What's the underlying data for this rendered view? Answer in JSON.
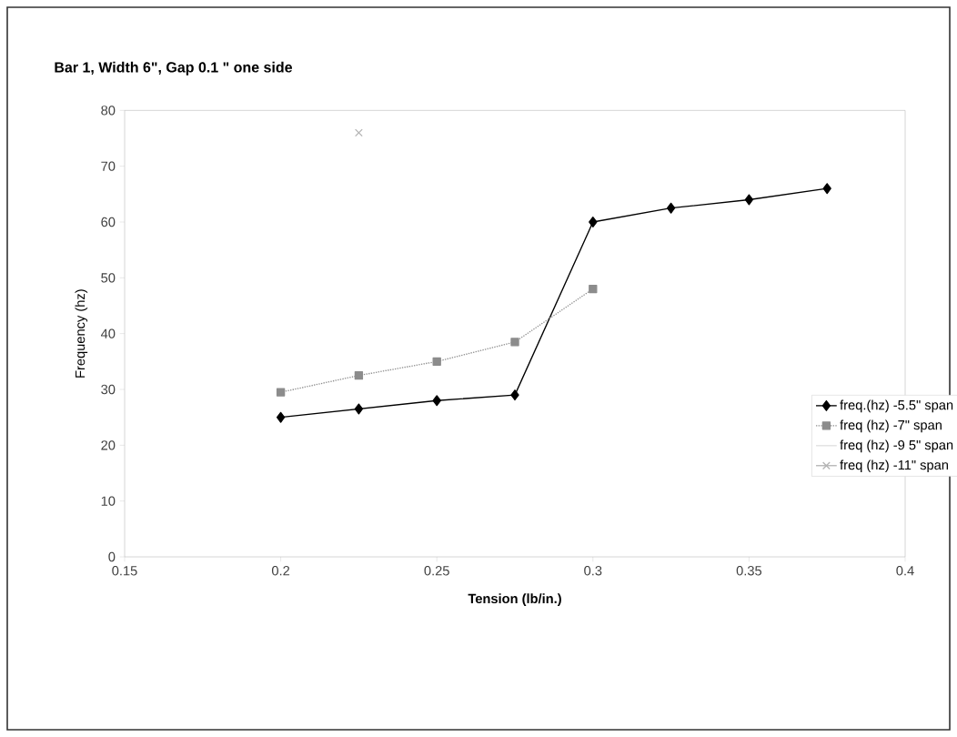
{
  "chart_data": {
    "type": "line",
    "title": "Bar 1, Width 6\", Gap 0.1 \" one side",
    "xlabel": "Tension (lb/in.)",
    "ylabel": "Frequency (hz)",
    "xlim": [
      0.15,
      0.4
    ],
    "xticks": [
      0.15,
      0.2,
      0.25,
      0.3,
      0.35,
      0.4
    ],
    "ylim": [
      0,
      80
    ],
    "yticks": [
      0,
      10,
      20,
      30,
      40,
      50,
      60,
      70,
      80
    ],
    "grid": false,
    "legend": "right",
    "series": [
      {
        "name": "freq.(hz) -5.5\" span",
        "color": "#000000",
        "marker": "diamond",
        "line_style": "solid",
        "x": [
          0.2,
          0.225,
          0.25,
          0.275,
          0.3,
          0.325,
          0.35,
          0.375
        ],
        "values": [
          25,
          26.5,
          28,
          29,
          60,
          62.5,
          64,
          66
        ]
      },
      {
        "name": "freq (hz) -7\" span",
        "color": "#8c8c8c",
        "marker": "square",
        "line_style": "dotted",
        "x": [
          0.2,
          0.225,
          0.25,
          0.275,
          0.3
        ],
        "values": [
          29.5,
          32.5,
          35,
          38.5,
          48
        ]
      },
      {
        "name": "freq (hz) -9 5\" span",
        "color": "#e0e0e0",
        "marker": "none",
        "line_style": "solid"
      },
      {
        "name": "freq (hz) -11\" span",
        "color": "#b4b4b4",
        "marker": "cross",
        "line_style": "solid",
        "x": [
          0.225
        ],
        "values": [
          76
        ]
      }
    ]
  }
}
